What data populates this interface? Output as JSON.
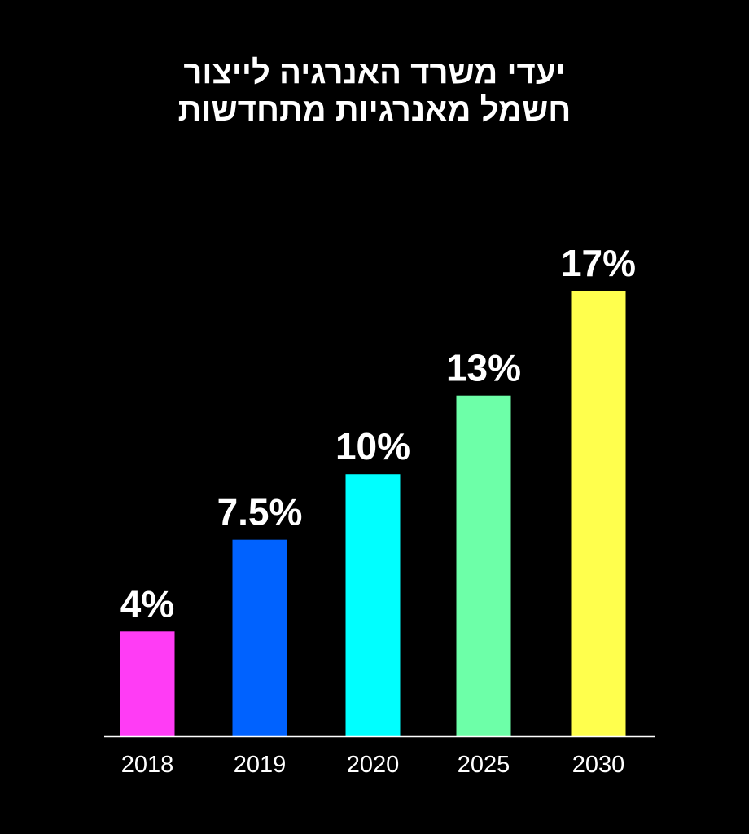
{
  "chart_data": {
    "type": "bar",
    "title_lines": [
      "יעדי משרד האנרגיה לייצור",
      "חשמל מאנרגיות מתחדשות"
    ],
    "categories": [
      "2018",
      "2019",
      "2020",
      "2025",
      "2030"
    ],
    "values": [
      4,
      7.5,
      10,
      13,
      17
    ],
    "value_labels": [
      "4%",
      "7.5%",
      "10%",
      "13%",
      "17%"
    ],
    "colors": [
      "#ff3cf5",
      "#0062ff",
      "#00ffff",
      "#6dffa8",
      "#ffff4d"
    ],
    "ylim": [
      0,
      17
    ],
    "grid": false,
    "legend": "none",
    "axis_color": "#ffffff",
    "background": "#000000"
  }
}
